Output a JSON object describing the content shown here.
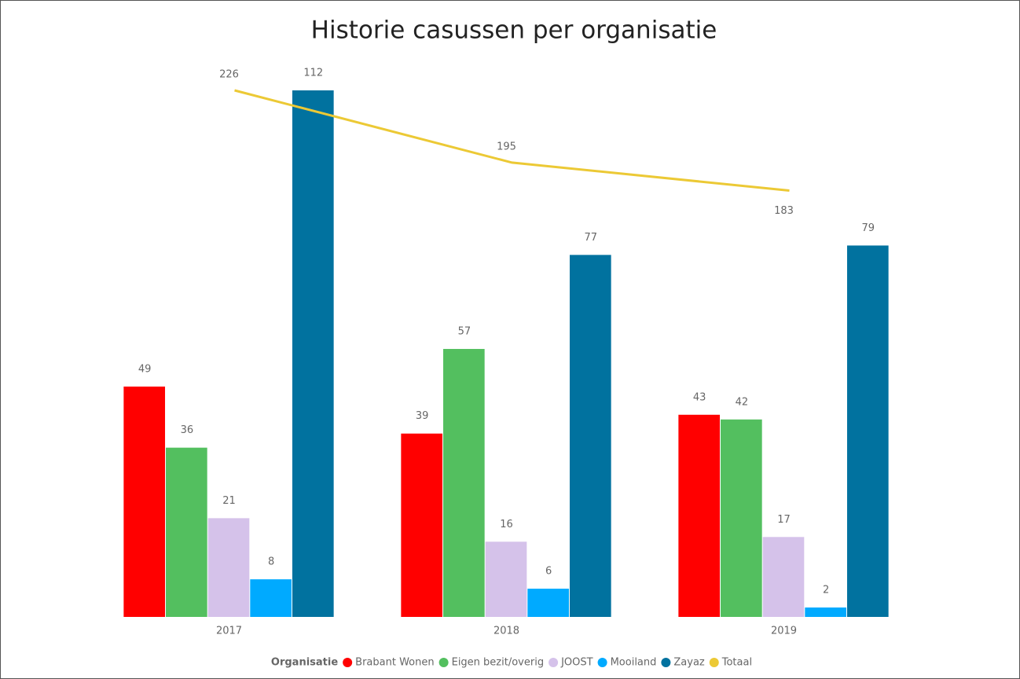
{
  "chart_data": {
    "type": "bar-line",
    "title": "Historie casussen per organisatie",
    "categories": [
      "2017",
      "2018",
      "2019"
    ],
    "legend_title": "Organisatie",
    "series": [
      {
        "name": "Brabant Wonen",
        "color": "#ff0000",
        "values": [
          49,
          39,
          43
        ]
      },
      {
        "name": "Eigen bezit/overig",
        "color": "#53bf5f",
        "values": [
          36,
          57,
          42
        ]
      },
      {
        "name": "JOOST",
        "color": "#d5c2ea",
        "values": [
          21,
          16,
          17
        ]
      },
      {
        "name": "Mooiland",
        "color": "#00aaff",
        "values": [
          8,
          6,
          2
        ]
      },
      {
        "name": "Zayaz",
        "color": "#01729f",
        "values": [
          112,
          77,
          79
        ]
      },
      {
        "name": "Totaal",
        "color": "#ecc935",
        "values": [
          226,
          195,
          183
        ],
        "axis": "y2",
        "type": "line"
      }
    ],
    "ylim": [
      0,
      112
    ],
    "y2lim": [
      0,
      226
    ],
    "legend": "bottom"
  }
}
